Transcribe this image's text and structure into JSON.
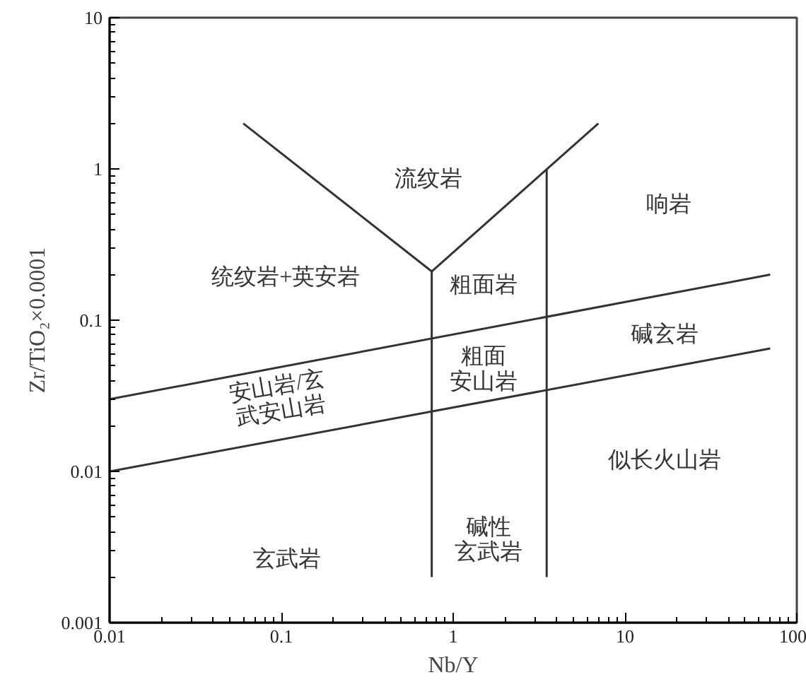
{
  "chart_data": {
    "type": "line",
    "xlabel": "Nb/Y",
    "ylabel": "Zr/TiO₂×0.0001",
    "log": "xy",
    "xlim": [
      0.01,
      100
    ],
    "ylim": [
      0.001,
      10
    ],
    "xticks": [
      0.01,
      0.1,
      1,
      10,
      100
    ],
    "yticks": [
      0.001,
      0.01,
      0.1,
      1,
      10
    ],
    "series": [
      {
        "color": "#333333",
        "x": [
          0.06,
          0.75,
          7
        ],
        "values": [
          2,
          0.21,
          2
        ]
      },
      {
        "color": "#333333",
        "x": [
          0.75,
          0.75
        ],
        "values": [
          0.21,
          0.002
        ]
      },
      {
        "color": "#333333",
        "x": [
          3.5,
          3.5
        ],
        "values": [
          1,
          0.002
        ]
      },
      {
        "color": "#333333",
        "x": [
          0.01,
          70
        ],
        "values": [
          0.03,
          0.2
        ]
      },
      {
        "color": "#333333",
        "x": [
          0.01,
          70
        ],
        "values": [
          0.01,
          0.065
        ]
      }
    ],
    "annotations": [
      "流纹岩",
      "响岩",
      "统纹岩+英安岩",
      "粗面岩",
      "碱玄岩",
      "粗面安山岩",
      "安山岩/玄武安山岩",
      "玄武岩",
      "碱性玄武岩",
      "似长火山岩"
    ]
  }
}
